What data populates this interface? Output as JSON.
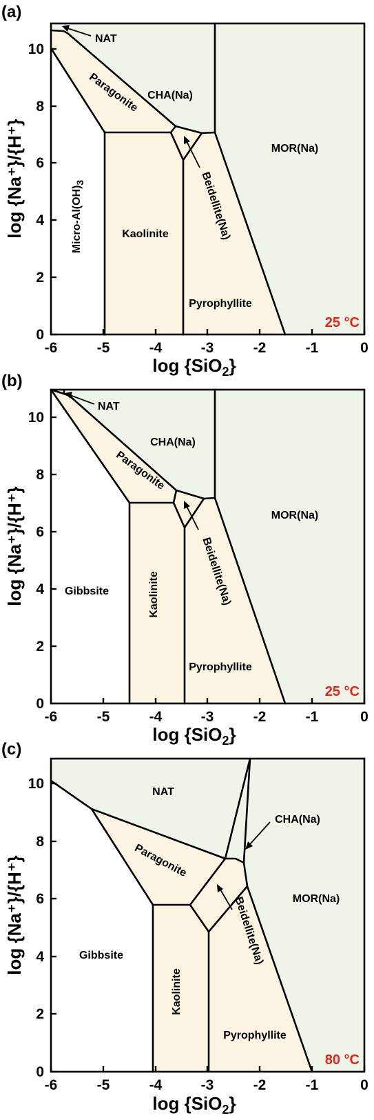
{
  "panels": [
    {
      "id": "a",
      "panel_label": "(a)",
      "temperature": "25 °C",
      "xlabel_main": "log {SiO",
      "xlabel_sub": "2",
      "xlabel_end": "}",
      "ylabel": "log {Na⁺}/{H⁺}",
      "xticks": [
        "-6",
        "-5",
        "-4",
        "-3",
        "-2",
        "-1",
        "0"
      ],
      "yticks": [
        "0",
        "2",
        "4",
        "6",
        "8",
        "10"
      ],
      "regions": {
        "nat": "NAT",
        "cha": "CHA(Na)",
        "mor": "MOR(Na)",
        "paragonite": "Paragonite",
        "micro": "Micro-Al(OH)",
        "micro_sub": "3",
        "kaolinite": "Kaolinite",
        "beidellite": "Beidellite(Na)",
        "pyrophyllite": "Pyrophyllite"
      }
    },
    {
      "id": "b",
      "panel_label": "(b)",
      "temperature": "25 °C",
      "xlabel_main": "log {SiO",
      "xlabel_sub": "2",
      "xlabel_end": "}",
      "ylabel": "log {Na⁺}/{H⁺}",
      "xticks": [
        "-6",
        "-5",
        "-4",
        "-3",
        "-2",
        "-1",
        "0"
      ],
      "yticks": [
        "0",
        "2",
        "4",
        "6",
        "8",
        "10"
      ],
      "regions": {
        "nat": "NAT",
        "cha": "CHA(Na)",
        "mor": "MOR(Na)",
        "paragonite": "Paragonite",
        "gibbsite": "Gibbsite",
        "kaolinite": "Kaolinite",
        "beidellite": "Beidellite(Na)",
        "pyrophyllite": "Pyrophyllite"
      }
    },
    {
      "id": "c",
      "panel_label": "(c)",
      "temperature": "80 °C",
      "xlabel_main": "log {SiO",
      "xlabel_sub": "2",
      "xlabel_end": "}",
      "ylabel": "log {Na⁺}/{H⁺}",
      "xticks": [
        "-6",
        "-5",
        "-4",
        "-3",
        "-2",
        "-1",
        "0"
      ],
      "yticks": [
        "0",
        "2",
        "4",
        "6",
        "8",
        "10"
      ],
      "regions": {
        "nat": "NAT",
        "cha": "CHA(Na)",
        "mor": "MOR(Na)",
        "paragonite": "Paragonite",
        "gibbsite": "Gibbsite",
        "kaolinite": "Kaolinite",
        "beidellite": "Beidellite(Na)",
        "pyrophyllite": "Pyrophyllite"
      }
    }
  ],
  "colors": {
    "zeolite_fill": "#eef5e8",
    "clay_fill": "#fbf4e2",
    "temperature_text": "#e8231e"
  }
}
